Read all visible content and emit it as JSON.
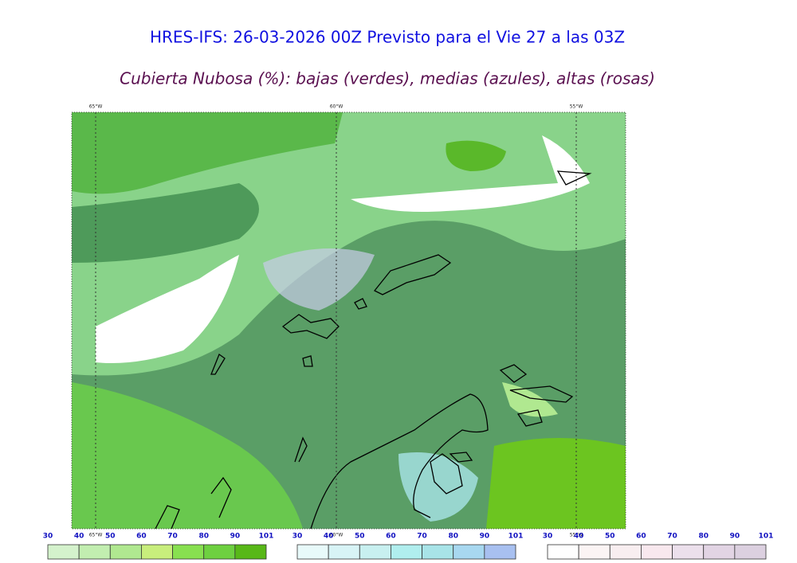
{
  "header": {
    "title": "HRES-IFS: 26-03-2026 00Z Previsto para el Vie 27 a las 03Z",
    "subtitle": "Cubierta Nubosa (%): bajas (verdes), medias (azules), altas (rosas)"
  },
  "map": {
    "lon_labels_top": [
      "65°W",
      "60°W",
      "55°W"
    ],
    "lon_labels_bottom": [
      "65°W",
      "60°W",
      "55°W"
    ]
  },
  "colorbars": [
    {
      "ticks": [
        30,
        40,
        50,
        60,
        70,
        80,
        90,
        101
      ],
      "colors": [
        "#d4f2cc",
        "#c2eeb0",
        "#b0e890",
        "#c8ee7c",
        "#88e050",
        "#6ed040",
        "#58b818"
      ]
    },
    {
      "ticks": [
        30,
        40,
        50,
        60,
        70,
        80,
        90,
        101
      ],
      "colors": [
        "#e8fafa",
        "#d8f4f6",
        "#c8f0f0",
        "#b0eeee",
        "#a8e4e8",
        "#a8d8f0",
        "#a8c0f0"
      ]
    },
    {
      "ticks": [
        30,
        40,
        50,
        60,
        70,
        80,
        90,
        101
      ],
      "colors": [
        "#fefefe",
        "#fbf4f4",
        "#f8eef0",
        "#f8e8ee",
        "#ece0ec",
        "#e2d4e4",
        "#dcd0e0"
      ]
    }
  ]
}
